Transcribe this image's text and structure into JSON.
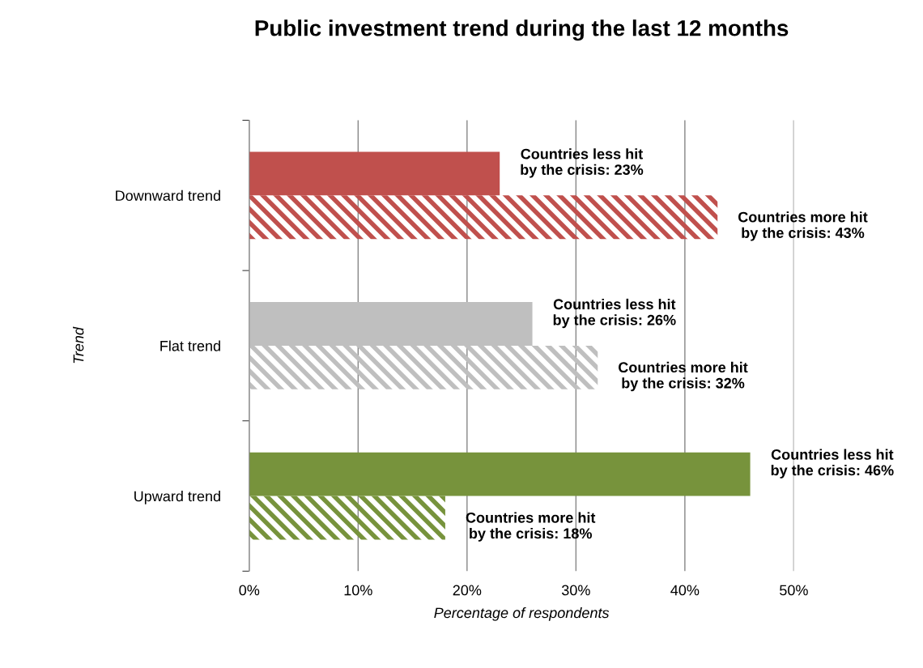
{
  "chart_data": {
    "type": "bar",
    "orientation": "horizontal",
    "title": "Public investment trend during the last 12 months",
    "xlabel": "Percentage of respondents",
    "ylabel": "Trend",
    "categories": [
      "Downward trend",
      "Flat trend",
      "Upward trend"
    ],
    "series": [
      {
        "colors": [
          "#c0504d",
          "#bfbfbf",
          "#77933c"
        ],
        "values": [
          23,
          26,
          46
        ],
        "value_labels": [
          "Countries less hit\nby the crisis: 23%",
          "Countries less hit\nby the crisis: 26%",
          "Countries less hit\nby the crisis: 46%"
        ]
      },
      {
        "colors": [
          "#c0504d",
          "#bfbfbf",
          "#77933c"
        ],
        "values": [
          43,
          32,
          18
        ],
        "value_labels": [
          "Countries more hit\nby the crisis: 43%",
          "Countries more hit\nby the crisis: 32%",
          "Countries more hit\nby the crisis: 18%"
        ]
      }
    ],
    "xlim": [
      0,
      50
    ],
    "xticks": [
      {
        "value": 0,
        "label": "0%"
      },
      {
        "value": 10,
        "label": "10%"
      },
      {
        "value": 20,
        "label": "20%"
      },
      {
        "value": 30,
        "label": "30%"
      },
      {
        "value": 40,
        "label": "40%"
      },
      {
        "value": 50,
        "label": "50%"
      }
    ],
    "grid": "x",
    "legend": false
  }
}
